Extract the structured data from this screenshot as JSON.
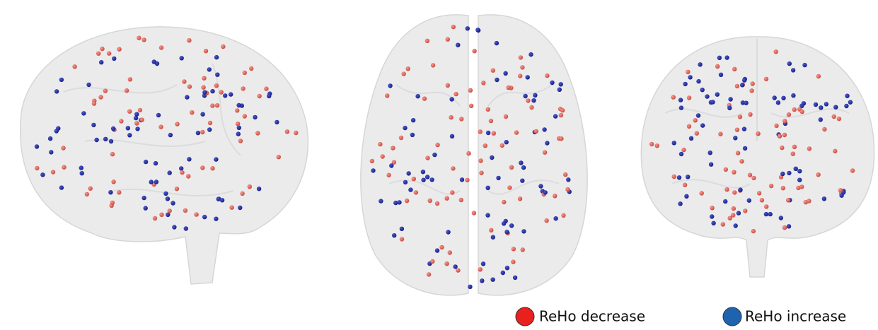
{
  "legend": [
    {
      "label": "ReHo decrease",
      "color": "#e8201e"
    },
    {
      "label": "ReHo increase",
      "color": "#1f63b0"
    }
  ]
}
